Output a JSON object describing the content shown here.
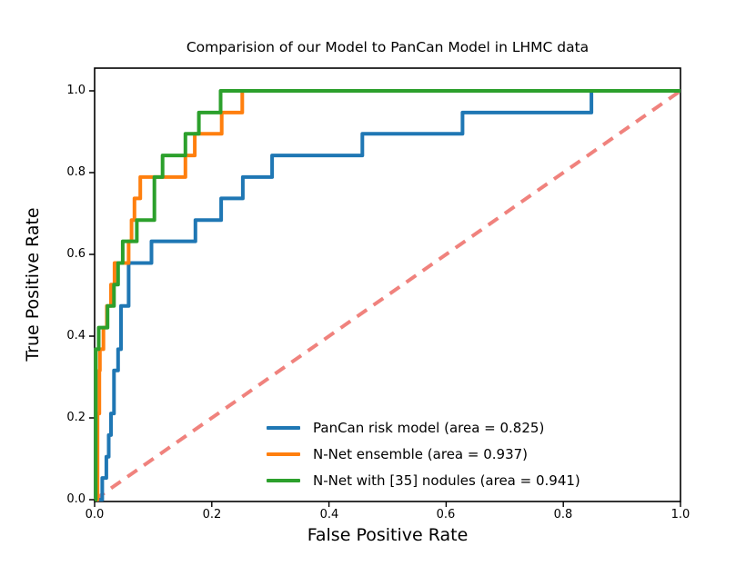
{
  "chart_data": {
    "type": "line",
    "subtype": "roc-step-curves",
    "title": "Comparision of our Model to PanCan Model in LHMC data",
    "xlabel": "False Positive Rate",
    "ylabel": "True Positive Rate",
    "xlim": [
      0.0,
      1.0
    ],
    "ylim": [
      0.0,
      1.05
    ],
    "x_ticks": [
      "0.0",
      "0.2",
      "0.4",
      "0.6",
      "0.8",
      "1.0"
    ],
    "y_ticks": [
      "0.0",
      "0.2",
      "0.4",
      "0.6",
      "0.8",
      "1.0"
    ],
    "grid": false,
    "legend_position": "lower right",
    "series": [
      {
        "name": "PanCan risk model (area = 0.825)",
        "auc": 0.825,
        "color": "#1f77b4",
        "line_style": "solid",
        "points": [
          [
            0,
            0
          ],
          [
            0.013,
            0
          ],
          [
            0.013,
            0.053
          ],
          [
            0.02,
            0.053
          ],
          [
            0.02,
            0.105
          ],
          [
            0.024,
            0.105
          ],
          [
            0.024,
            0.158
          ],
          [
            0.028,
            0.158
          ],
          [
            0.028,
            0.211
          ],
          [
            0.033,
            0.211
          ],
          [
            0.033,
            0.316
          ],
          [
            0.04,
            0.316
          ],
          [
            0.04,
            0.368
          ],
          [
            0.045,
            0.368
          ],
          [
            0.045,
            0.474
          ],
          [
            0.058,
            0.474
          ],
          [
            0.058,
            0.579
          ],
          [
            0.097,
            0.579
          ],
          [
            0.097,
            0.632
          ],
          [
            0.172,
            0.632
          ],
          [
            0.172,
            0.684
          ],
          [
            0.216,
            0.684
          ],
          [
            0.216,
            0.737
          ],
          [
            0.253,
            0.737
          ],
          [
            0.253,
            0.789
          ],
          [
            0.303,
            0.789
          ],
          [
            0.303,
            0.842
          ],
          [
            0.457,
            0.842
          ],
          [
            0.457,
            0.895
          ],
          [
            0.628,
            0.895
          ],
          [
            0.628,
            0.947
          ],
          [
            0.848,
            0.947
          ],
          [
            0.848,
            1
          ],
          [
            1,
            1
          ]
        ]
      },
      {
        "name": "N-Net ensemble (area = 0.937)",
        "auc": 0.937,
        "color": "#ff7f0e",
        "line_style": "solid",
        "points": [
          [
            0,
            0
          ],
          [
            0.005,
            0
          ],
          [
            0.005,
            0.211
          ],
          [
            0.008,
            0.211
          ],
          [
            0.008,
            0.316
          ],
          [
            0.009,
            0.316
          ],
          [
            0.009,
            0.368
          ],
          [
            0.015,
            0.368
          ],
          [
            0.015,
            0.421
          ],
          [
            0.021,
            0.421
          ],
          [
            0.021,
            0.474
          ],
          [
            0.028,
            0.474
          ],
          [
            0.028,
            0.526
          ],
          [
            0.034,
            0.526
          ],
          [
            0.034,
            0.579
          ],
          [
            0.058,
            0.579
          ],
          [
            0.058,
            0.632
          ],
          [
            0.063,
            0.632
          ],
          [
            0.063,
            0.684
          ],
          [
            0.068,
            0.684
          ],
          [
            0.068,
            0.737
          ],
          [
            0.078,
            0.737
          ],
          [
            0.078,
            0.789
          ],
          [
            0.155,
            0.789
          ],
          [
            0.155,
            0.842
          ],
          [
            0.171,
            0.842
          ],
          [
            0.171,
            0.895
          ],
          [
            0.217,
            0.895
          ],
          [
            0.217,
            0.947
          ],
          [
            0.252,
            0.947
          ],
          [
            0.252,
            1
          ],
          [
            1,
            1
          ]
        ]
      },
      {
        "name": "N-Net with [35] nodules (area = 0.941)",
        "auc": 0.941,
        "color": "#2ca02c",
        "line_style": "solid",
        "points": [
          [
            0,
            0
          ],
          [
            0.002,
            0
          ],
          [
            0.002,
            0.368
          ],
          [
            0.007,
            0.368
          ],
          [
            0.007,
            0.421
          ],
          [
            0.022,
            0.421
          ],
          [
            0.022,
            0.474
          ],
          [
            0.033,
            0.474
          ],
          [
            0.033,
            0.526
          ],
          [
            0.04,
            0.526
          ],
          [
            0.04,
            0.579
          ],
          [
            0.048,
            0.579
          ],
          [
            0.048,
            0.632
          ],
          [
            0.072,
            0.632
          ],
          [
            0.072,
            0.684
          ],
          [
            0.102,
            0.684
          ],
          [
            0.102,
            0.789
          ],
          [
            0.116,
            0.789
          ],
          [
            0.116,
            0.842
          ],
          [
            0.155,
            0.842
          ],
          [
            0.155,
            0.895
          ],
          [
            0.178,
            0.895
          ],
          [
            0.178,
            0.947
          ],
          [
            0.215,
            0.947
          ],
          [
            0.215,
            1
          ],
          [
            1,
            1
          ]
        ]
      }
    ],
    "reference_line": {
      "name": "chance diagonal",
      "color": "#f0827d",
      "line_style": "dashed",
      "points": [
        [
          0,
          0
        ],
        [
          1,
          1
        ]
      ]
    }
  }
}
